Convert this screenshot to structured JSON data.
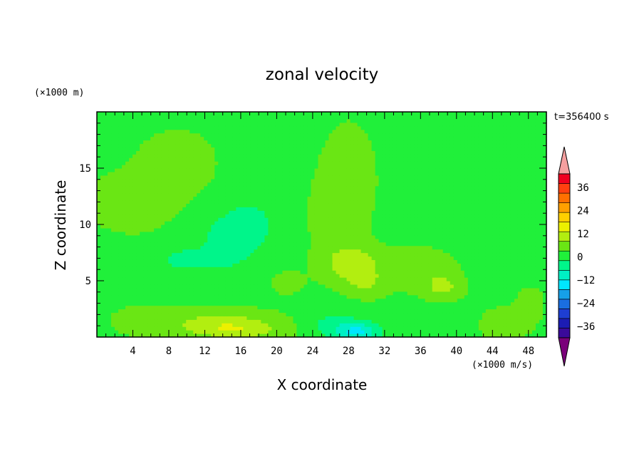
{
  "chart_data": {
    "type": "heatmap",
    "title": "zonal velocity",
    "xlabel": "X coordinate",
    "ylabel": "Z coordinate",
    "x_unit": "(×1000 m/s)",
    "y_unit": "(×1000 m)",
    "time_label": "t=356400 s",
    "xlim": [
      0,
      50
    ],
    "ylim": [
      0,
      20
    ],
    "x_ticks": [
      4,
      8,
      12,
      16,
      20,
      24,
      28,
      32,
      36,
      40,
      44,
      48
    ],
    "y_ticks": [
      5,
      10,
      15
    ],
    "colorbar": {
      "levels": [
        -36,
        -24,
        -12,
        0,
        12,
        24,
        36
      ],
      "colors": [
        "#7a007a",
        "#3a0a9a",
        "#1c1cb4",
        "#1e3ed2",
        "#1a6ee0",
        "#16a0e8",
        "#00e6ff",
        "#00f0c4",
        "#00f58a",
        "#20f03a",
        "#6ae614",
        "#b2ee10",
        "#ecf000",
        "#ffd000",
        "#ffa000",
        "#ff7000",
        "#ff4010",
        "#f00020",
        "#f5a0a0"
      ]
    },
    "background_value": 2,
    "features": [
      {
        "x": 5,
        "z": 12,
        "sx": 8,
        "sz": 3.5,
        "value": 2
      },
      {
        "x": 9,
        "z": 16,
        "sx": 4,
        "sz": 2.5,
        "value": 2.5
      },
      {
        "x": 28,
        "z": 14,
        "sx": 3,
        "sz": 5,
        "value": 3
      },
      {
        "x": 26,
        "z": 10,
        "sx": 2.5,
        "sz": 4,
        "value": 2.5
      },
      {
        "x": 15,
        "z": 9,
        "sx": 4.5,
        "sz": 2.5,
        "value": -6
      },
      {
        "x": 17,
        "z": 10.5,
        "sx": 2.5,
        "sz": 1.8,
        "value": -4
      },
      {
        "x": 9,
        "z": 7,
        "sx": 3.5,
        "sz": 1.2,
        "value": -4
      },
      {
        "x": 14,
        "z": 6,
        "sx": 6,
        "sz": 1.5,
        "value": -2
      },
      {
        "x": 14,
        "z": 1.2,
        "sx": 6,
        "sz": 1.1,
        "value": 9
      },
      {
        "x": 16,
        "z": 0.5,
        "sx": 5,
        "sz": 0.7,
        "value": 5
      },
      {
        "x": 5,
        "z": 1.5,
        "sx": 4,
        "sz": 1.5,
        "value": 2
      },
      {
        "x": 28.5,
        "z": 6.5,
        "sx": 3,
        "sz": 1.6,
        "value": 9
      },
      {
        "x": 30,
        "z": 4.8,
        "sx": 2,
        "sz": 1.2,
        "value": 5
      },
      {
        "x": 29,
        "z": 0.5,
        "sx": 2.5,
        "sz": 0.9,
        "value": -14
      },
      {
        "x": 26,
        "z": 1.2,
        "sx": 3,
        "sz": 1.2,
        "value": -5
      },
      {
        "x": 38.5,
        "z": 4.5,
        "sx": 2,
        "sz": 1.1,
        "value": 7
      },
      {
        "x": 38.5,
        "z": 1.3,
        "sx": 4,
        "sz": 1.3,
        "value": -4
      },
      {
        "x": 45,
        "z": 1.2,
        "sx": 2.5,
        "sz": 1.2,
        "value": 6
      },
      {
        "x": 48,
        "z": 3,
        "sx": 1.5,
        "sz": 1.5,
        "value": 4
      },
      {
        "x": 45,
        "z": 5.5,
        "sx": 2.5,
        "sz": 1.8,
        "value": -3
      },
      {
        "x": 48,
        "z": 12,
        "sx": 1.5,
        "sz": 1.5,
        "value": -1.5
      },
      {
        "x": 36,
        "z": 6,
        "sx": 4,
        "sz": 2,
        "value": 3
      },
      {
        "x": 21,
        "z": 5,
        "sx": 2,
        "sz": 1.2,
        "value": 3
      }
    ]
  }
}
